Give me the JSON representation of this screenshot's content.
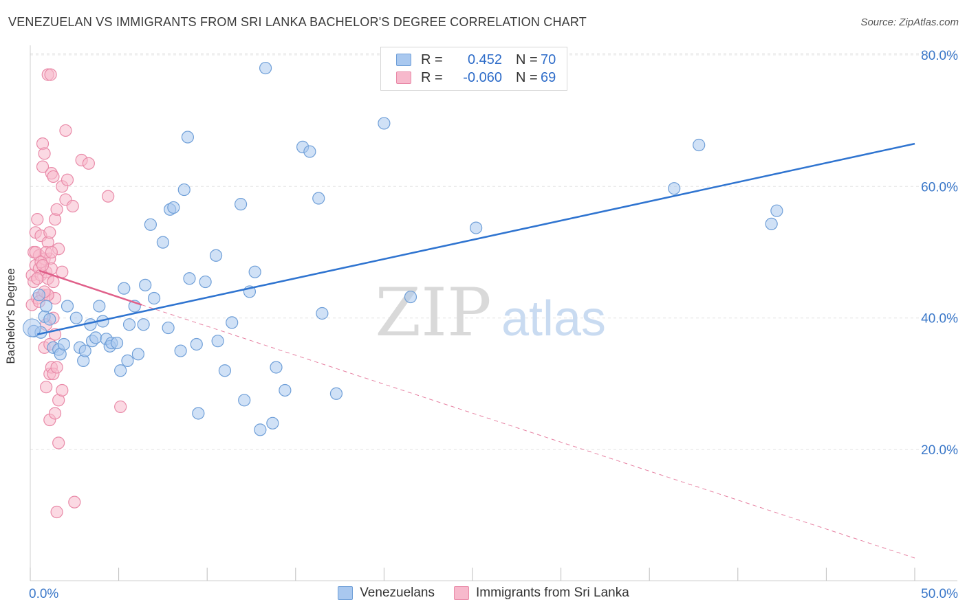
{
  "title": "VENEZUELAN VS IMMIGRANTS FROM SRI LANKA BACHELOR'S DEGREE CORRELATION CHART",
  "source": "Source: ZipAtlas.com",
  "watermark": {
    "zip": "ZIP",
    "atlas": "atlas"
  },
  "colors": {
    "blue_fill": "#a9c8ef",
    "blue_stroke": "#6f9fd8",
    "blue_line": "#2f74d0",
    "pink_fill": "#f7b9cc",
    "pink_stroke": "#e98aa8",
    "pink_line": "#e0608a",
    "axis_text": "#3b78c9",
    "grid": "#e3e3e3"
  },
  "legend": {
    "rows": [
      {
        "r_label": "R =",
        "r_value": "0.452",
        "n_label": "N =",
        "n_value": "70"
      },
      {
        "r_label": "R =",
        "r_value": "-0.060",
        "n_label": "N =",
        "n_value": "69"
      }
    ]
  },
  "bottom_legend": {
    "items": [
      {
        "label": "Venezuelans"
      },
      {
        "label": "Immigrants from Sri Lanka"
      }
    ]
  },
  "chart_data": {
    "type": "scatter",
    "title": "VENEZUELAN VS IMMIGRANTS FROM SRI LANKA BACHELOR'S DEGREE CORRELATION CHART",
    "xlabel": "",
    "ylabel": "Bachelor's Degree",
    "xlim": [
      0,
      50
    ],
    "ylim": [
      0,
      82
    ],
    "x_tick_labels": [
      {
        "value": 0,
        "label": "0.0%"
      },
      {
        "value": 50,
        "label": "50.0%"
      }
    ],
    "y_tick_labels": [
      {
        "value": 20,
        "label": "20.0%"
      },
      {
        "value": 40,
        "label": "40.0%"
      },
      {
        "value": 60,
        "label": "60.0%"
      },
      {
        "value": 80,
        "label": "80.0%"
      }
    ],
    "x_minor_ticks": [
      0,
      5,
      10,
      15,
      20,
      25,
      30,
      35,
      40,
      45,
      50
    ],
    "grid": true,
    "series": [
      {
        "name": "Venezuelans",
        "r": 0.452,
        "n": 70,
        "trend": {
          "x": [
            0.4,
            50
          ],
          "y": [
            37.5,
            66.5
          ],
          "style": "solid"
        },
        "points": [
          [
            0.2,
            38.0
          ],
          [
            0.6,
            37.8
          ],
          [
            0.8,
            40.2
          ],
          [
            0.9,
            41.8
          ],
          [
            1.1,
            39.8
          ],
          [
            1.3,
            35.5
          ],
          [
            1.6,
            35.2
          ],
          [
            1.7,
            34.5
          ],
          [
            1.9,
            36.0
          ],
          [
            2.1,
            41.8
          ],
          [
            2.6,
            40.0
          ],
          [
            2.8,
            35.5
          ],
          [
            3.0,
            33.5
          ],
          [
            3.1,
            35.0
          ],
          [
            3.4,
            39.0
          ],
          [
            3.5,
            36.5
          ],
          [
            3.7,
            37.0
          ],
          [
            3.9,
            41.8
          ],
          [
            4.1,
            39.5
          ],
          [
            4.3,
            36.8
          ],
          [
            4.5,
            35.7
          ],
          [
            4.6,
            36.2
          ],
          [
            4.9,
            36.2
          ],
          [
            5.1,
            32.0
          ],
          [
            5.3,
            44.5
          ],
          [
            5.5,
            33.5
          ],
          [
            5.6,
            39.0
          ],
          [
            5.9,
            41.8
          ],
          [
            6.1,
            34.5
          ],
          [
            6.4,
            39.0
          ],
          [
            6.5,
            45.0
          ],
          [
            6.8,
            54.2
          ],
          [
            7.0,
            43.0
          ],
          [
            7.5,
            51.5
          ],
          [
            7.8,
            38.5
          ],
          [
            7.9,
            56.5
          ],
          [
            8.1,
            56.8
          ],
          [
            8.5,
            35.0
          ],
          [
            8.7,
            59.5
          ],
          [
            8.9,
            67.5
          ],
          [
            9.0,
            46.0
          ],
          [
            9.4,
            36.0
          ],
          [
            9.5,
            25.5
          ],
          [
            9.9,
            45.5
          ],
          [
            10.5,
            49.5
          ],
          [
            10.6,
            36.5
          ],
          [
            11.0,
            32.0
          ],
          [
            11.4,
            39.3
          ],
          [
            11.9,
            57.3
          ],
          [
            12.1,
            27.5
          ],
          [
            12.4,
            44.0
          ],
          [
            12.7,
            47.0
          ],
          [
            13.0,
            23.0
          ],
          [
            13.3,
            78.0
          ],
          [
            13.7,
            24.0
          ],
          [
            13.9,
            32.5
          ],
          [
            14.4,
            29.0
          ],
          [
            15.4,
            66.0
          ],
          [
            15.8,
            65.3
          ],
          [
            16.3,
            58.2
          ],
          [
            16.5,
            40.7
          ],
          [
            17.3,
            28.5
          ],
          [
            20.0,
            69.6
          ],
          [
            21.5,
            43.2
          ],
          [
            25.2,
            53.7
          ],
          [
            36.4,
            59.7
          ],
          [
            37.8,
            66.3
          ],
          [
            41.9,
            54.3
          ],
          [
            42.2,
            56.3
          ],
          [
            0.5,
            43.5
          ]
        ]
      },
      {
        "name": "Immigrants from Sri Lanka",
        "r": -0.06,
        "n": 69,
        "trend_solid": {
          "x": [
            0.5,
            6.3
          ],
          "y": [
            47.2,
            42.0
          ],
          "style": "solid"
        },
        "trend_dashed": {
          "x": [
            6.3,
            50
          ],
          "y": [
            42.0,
            3.5
          ],
          "style": "dashed"
        },
        "points": [
          [
            0.1,
            42.0
          ],
          [
            0.1,
            46.5
          ],
          [
            0.2,
            50.0
          ],
          [
            0.2,
            45.5
          ],
          [
            0.3,
            53.0
          ],
          [
            0.3,
            48.0
          ],
          [
            0.4,
            55.0
          ],
          [
            0.4,
            43.0
          ],
          [
            0.5,
            49.5
          ],
          [
            0.5,
            47.5
          ],
          [
            0.6,
            52.5
          ],
          [
            0.6,
            46.5
          ],
          [
            0.7,
            66.5
          ],
          [
            0.7,
            63.0
          ],
          [
            0.7,
            43.5
          ],
          [
            0.8,
            65.0
          ],
          [
            0.8,
            49.0
          ],
          [
            0.8,
            35.5
          ],
          [
            0.9,
            47.0
          ],
          [
            0.9,
            39.0
          ],
          [
            0.9,
            29.5
          ],
          [
            1.0,
            51.5
          ],
          [
            1.0,
            46.0
          ],
          [
            1.0,
            43.5
          ],
          [
            1.1,
            53.0
          ],
          [
            1.1,
            49.0
          ],
          [
            1.1,
            31.5
          ],
          [
            1.1,
            24.5
          ],
          [
            1.2,
            62.0
          ],
          [
            1.2,
            47.5
          ],
          [
            1.2,
            32.5
          ],
          [
            1.3,
            61.5
          ],
          [
            1.3,
            40.0
          ],
          [
            1.3,
            31.5
          ],
          [
            1.4,
            55.0
          ],
          [
            1.4,
            43.0
          ],
          [
            1.4,
            25.5
          ],
          [
            1.5,
            56.5
          ],
          [
            1.5,
            32.5
          ],
          [
            1.5,
            10.5
          ],
          [
            1.6,
            50.5
          ],
          [
            1.6,
            27.5
          ],
          [
            1.6,
            21.0
          ],
          [
            1.8,
            60.0
          ],
          [
            1.8,
            47.0
          ],
          [
            1.8,
            29.0
          ],
          [
            2.0,
            58.0
          ],
          [
            2.0,
            68.5
          ],
          [
            2.1,
            61.0
          ],
          [
            2.4,
            57.0
          ],
          [
            2.5,
            12.0
          ],
          [
            2.9,
            64.0
          ],
          [
            3.3,
            63.5
          ],
          [
            4.4,
            58.5
          ],
          [
            5.1,
            26.5
          ],
          [
            1.0,
            77.0
          ],
          [
            1.15,
            77.0
          ],
          [
            0.3,
            50.0
          ],
          [
            0.6,
            48.5
          ],
          [
            0.9,
            50.0
          ],
          [
            1.2,
            50.0
          ],
          [
            0.4,
            46.0
          ],
          [
            0.7,
            48.0
          ],
          [
            1.0,
            43.5
          ],
          [
            1.3,
            45.5
          ],
          [
            0.5,
            42.5
          ],
          [
            0.8,
            44.0
          ],
          [
            1.1,
            36.0
          ],
          [
            1.4,
            37.5
          ]
        ]
      }
    ]
  }
}
